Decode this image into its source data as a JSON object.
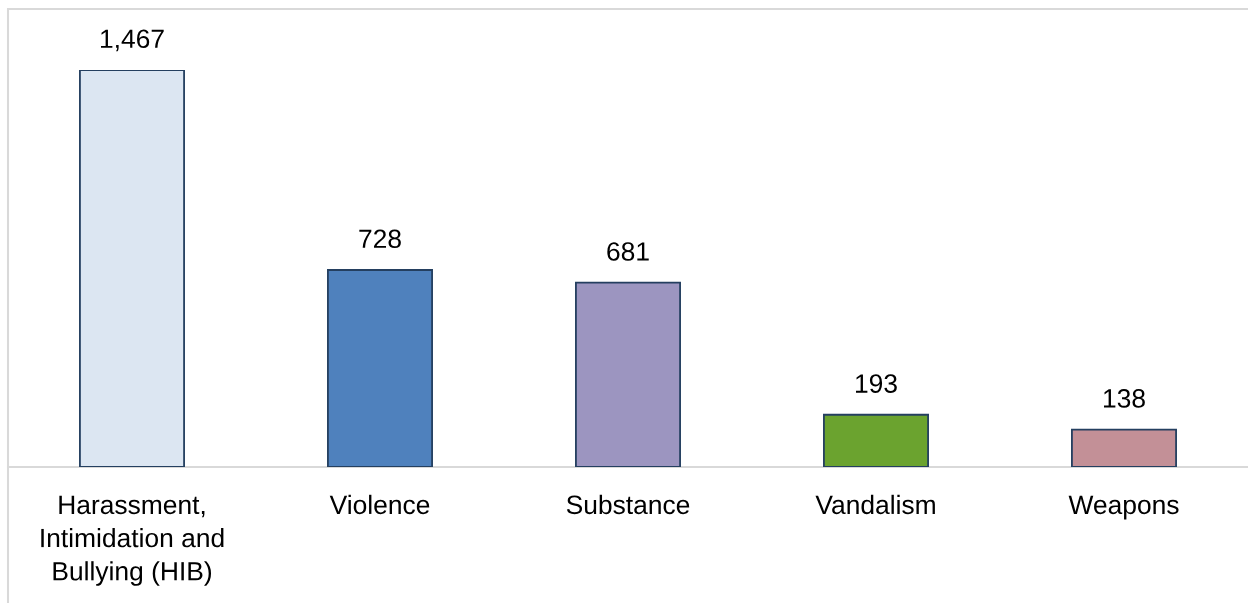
{
  "chart_data": {
    "type": "bar",
    "categories": [
      "Harassment,\nIntimidation and\nBullying (HIB)",
      "Violence",
      "Substance",
      "Vandalism",
      "Weapons"
    ],
    "values": [
      1467,
      728,
      681,
      193,
      138
    ],
    "colors": [
      "#dce6f2",
      "#4f81bd",
      "#9c95c0",
      "#6ba32f",
      "#c39097"
    ],
    "value_labels": [
      "1,467",
      "728",
      "681",
      "193",
      "138"
    ],
    "tick_labels": "x",
    "grid": false,
    "legend": false
  }
}
